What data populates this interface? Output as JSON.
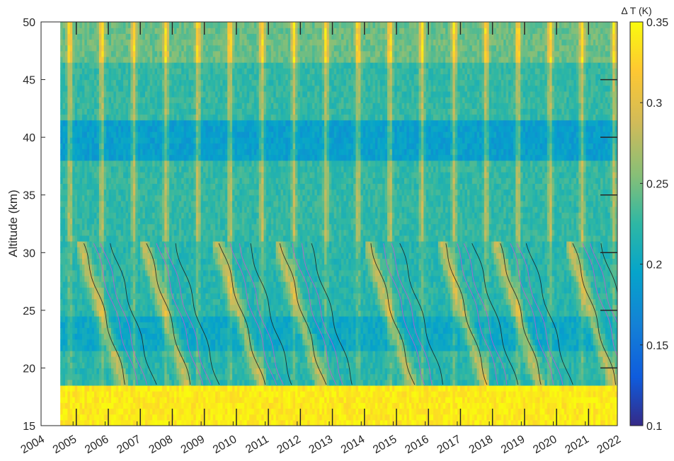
{
  "chart_data": {
    "type": "heatmap",
    "title": "",
    "xlabel": "",
    "ylabel": "Altitude (km)",
    "xlim": [
      2004,
      2022
    ],
    "ylim": [
      15,
      50
    ],
    "x_ticks": [
      2004,
      2005,
      2006,
      2007,
      2008,
      2009,
      2010,
      2011,
      2012,
      2013,
      2014,
      2015,
      2016,
      2017,
      2018,
      2019,
      2020,
      2021,
      2022
    ],
    "y_ticks": [
      15,
      20,
      25,
      30,
      35,
      40,
      45,
      50
    ],
    "data_start_year": 2004.6,
    "colorbar": {
      "title": "Δ T (K)",
      "range": [
        0.1,
        0.35
      ],
      "ticks": [
        0.1,
        0.15,
        0.2,
        0.25,
        0.3,
        0.35
      ],
      "colormap": "parula"
    },
    "altitude_regimes": [
      {
        "range": [
          15,
          18.5
        ],
        "value": 0.34
      },
      {
        "range": [
          18.5,
          30.8
        ],
        "value": 0.22
      },
      {
        "range": [
          30.8,
          50
        ],
        "value": 0.225
      }
    ],
    "annual_maxima": [
      2004.9,
      2005.9,
      2006.9,
      2007.9,
      2008.9,
      2009.9,
      2010.9,
      2011.9,
      2012.9,
      2013.9,
      2014.9,
      2015.9,
      2016.9,
      2017.9,
      2018.9,
      2019.9,
      2020.9,
      2021.9
    ],
    "qbo_onsets": [
      2005.3,
      2007.3,
      2009.6,
      2011.5,
      2014.3,
      2016.6,
      2018.3,
      2020.6
    ],
    "contours": {
      "black": "eastward shear",
      "magenta": "westward shear"
    },
    "grid": false
  }
}
